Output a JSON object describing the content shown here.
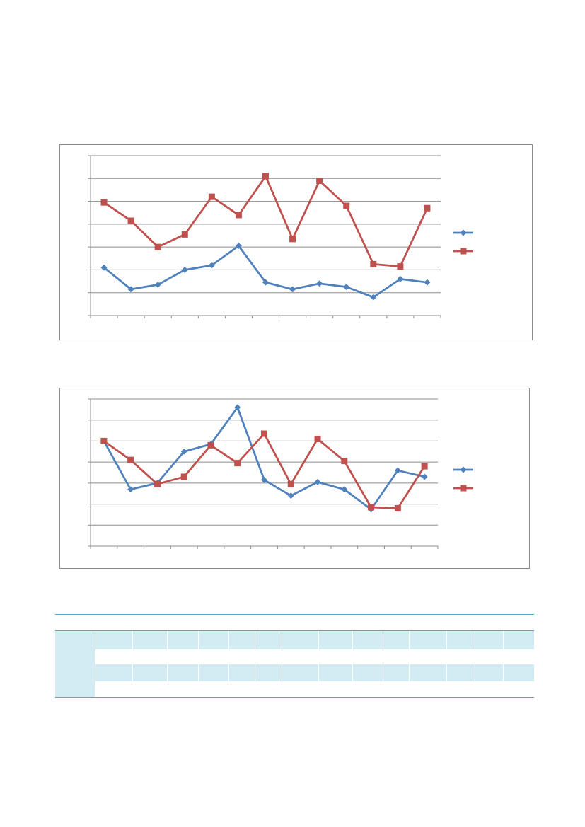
{
  "colors": {
    "series_blue": "#4f81bd",
    "series_red": "#c0504d",
    "gridline": "#8c8c8c",
    "table_accent": "#4bacc6",
    "table_band": "#d3ebf3"
  },
  "chart_data": [
    {
      "type": "line",
      "x": [
        1,
        2,
        3,
        4,
        5,
        6,
        7,
        8,
        9,
        10,
        11,
        12,
        13
      ],
      "ylim": [
        0,
        7
      ],
      "grid": true,
      "legend": "right",
      "series": [
        {
          "color": "#4f81bd",
          "marker": "diamond",
          "values": [
            2.1,
            1.15,
            1.35,
            2.0,
            2.2,
            3.05,
            1.45,
            1.15,
            1.4,
            1.25,
            0.8,
            1.6,
            1.45
          ]
        },
        {
          "color": "#c0504d",
          "marker": "square",
          "values": [
            4.95,
            4.15,
            3.0,
            3.55,
            5.2,
            4.4,
            6.1,
            3.35,
            5.9,
            4.8,
            2.25,
            2.15,
            4.7
          ]
        }
      ]
    },
    {
      "type": "line",
      "x": [
        1,
        2,
        3,
        4,
        5,
        6,
        7,
        8,
        9,
        10,
        11,
        12,
        13
      ],
      "ylim": [
        0,
        7
      ],
      "grid": true,
      "legend": "right",
      "series": [
        {
          "color": "#4f81bd",
          "marker": "diamond",
          "values": [
            5.0,
            2.7,
            3.0,
            4.5,
            4.85,
            6.6,
            3.15,
            2.4,
            3.05,
            2.7,
            1.75,
            3.6,
            3.3
          ]
        },
        {
          "color": "#c0504d",
          "marker": "square",
          "values": [
            5.0,
            4.1,
            2.95,
            3.3,
            4.8,
            3.95,
            5.35,
            2.95,
            5.1,
            4.05,
            1.85,
            1.8,
            3.8
          ]
        }
      ]
    }
  ]
}
